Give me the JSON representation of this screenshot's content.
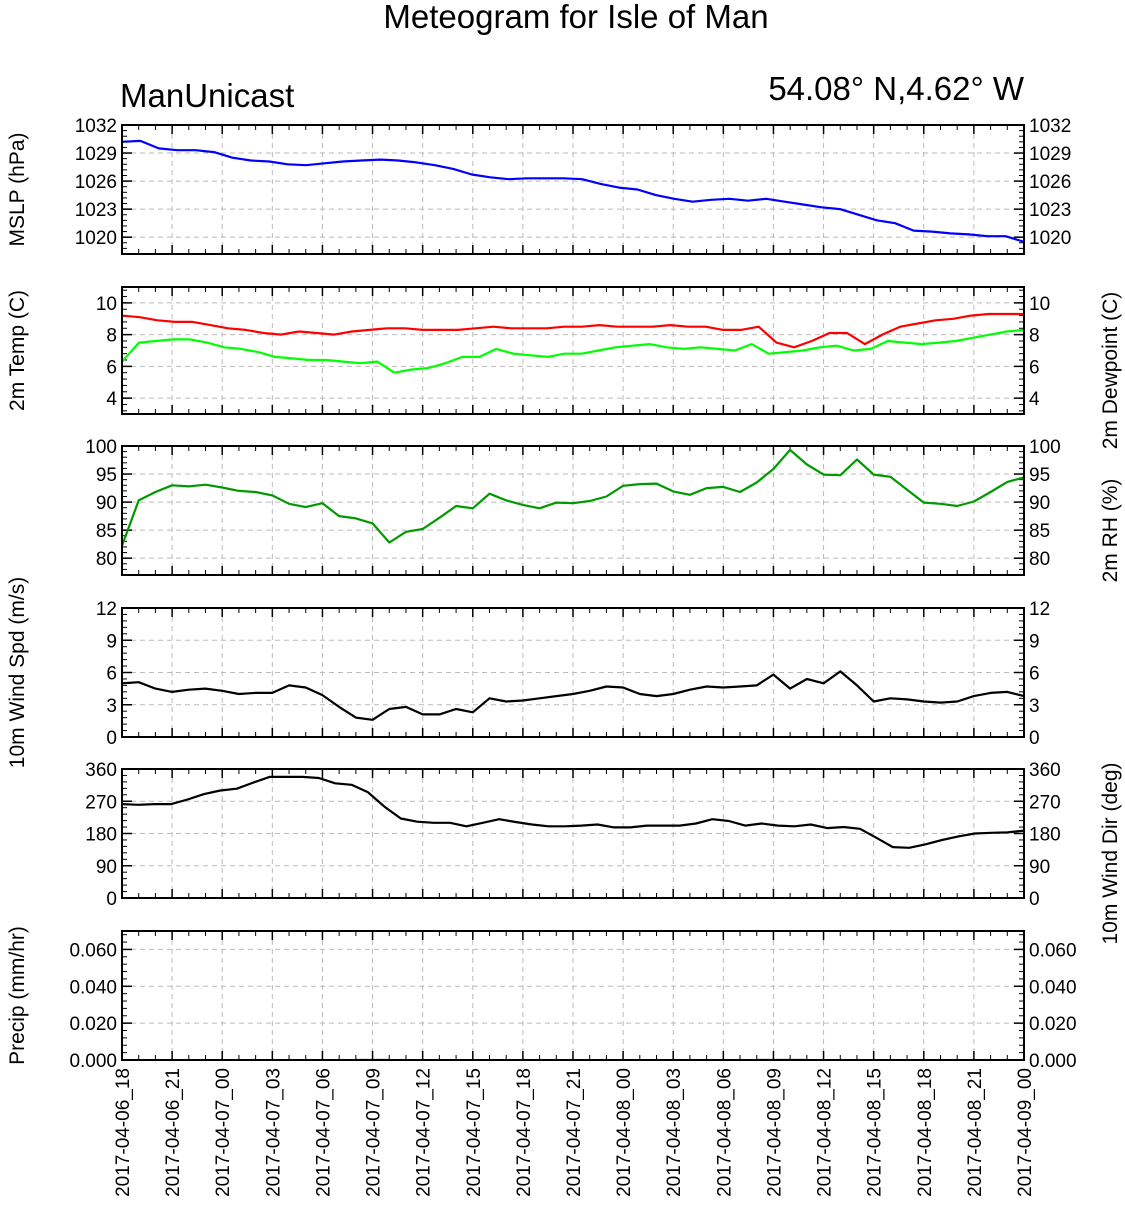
{
  "header": {
    "title": "Meteogram for Isle of Man",
    "model": "ManUnicast",
    "location": "54.08° N,4.62° W"
  },
  "x_tick_labels": [
    "2017-04-06_18",
    "2017-04-06_21",
    "2017-04-07_00",
    "2017-04-07_03",
    "2017-04-07_06",
    "2017-04-07_09",
    "2017-04-07_12",
    "2017-04-07_15",
    "2017-04-07_18",
    "2017-04-07_21",
    "2017-04-08_00",
    "2017-04-08_03",
    "2017-04-08_06",
    "2017-04-08_09",
    "2017-04-08_12",
    "2017-04-08_15",
    "2017-04-08_18",
    "2017-04-08_21",
    "2017-04-09_00"
  ],
  "chart_data": [
    {
      "type": "line",
      "ylabel": "MSLP (hPa)",
      "ylim": [
        1018.2,
        1032
      ],
      "yticks": [
        1020,
        1023,
        1026,
        1029,
        1032
      ],
      "tick_decimals": 0,
      "right_ticks": true,
      "grid": true,
      "series": [
        {
          "color": "#0000ff",
          "values": [
            1030.2,
            1030.3,
            1029.5,
            1029.3,
            1029.3,
            1029.1,
            1028.5,
            1028.2,
            1028.1,
            1027.8,
            1027.7,
            1027.9,
            1028.1,
            1028.2,
            1028.3,
            1028.2,
            1028.0,
            1027.7,
            1027.3,
            1026.7,
            1026.4,
            1026.2,
            1026.3,
            1026.3,
            1026.3,
            1026.2,
            1025.7,
            1025.3,
            1025.1,
            1024.5,
            1024.1,
            1023.8,
            1024.0,
            1024.1,
            1023.9,
            1024.1,
            1023.8,
            1023.5,
            1023.2,
            1023.0,
            1022.4,
            1021.8,
            1021.5,
            1020.7,
            1020.6,
            1020.4,
            1020.3,
            1020.1,
            1020.1,
            1019.5
          ]
        }
      ]
    },
    {
      "type": "line",
      "ylabel": "2m Temp (C)",
      "ylabel_right": "2m Dewpoint (C)",
      "ylim": [
        3,
        11
      ],
      "yticks": [
        4,
        6,
        8,
        10
      ],
      "tick_decimals": 0,
      "right_ticks": true,
      "grid": true,
      "series": [
        {
          "color": "#ff0000",
          "values": [
            9.2,
            9.1,
            8.9,
            8.8,
            8.8,
            8.6,
            8.4,
            8.3,
            8.1,
            8.0,
            8.2,
            8.1,
            8.0,
            8.2,
            8.3,
            8.4,
            8.4,
            8.3,
            8.3,
            8.3,
            8.4,
            8.5,
            8.4,
            8.4,
            8.4,
            8.5,
            8.5,
            8.6,
            8.5,
            8.5,
            8.5,
            8.6,
            8.5,
            8.5,
            8.3,
            8.3,
            8.5,
            7.5,
            7.2,
            7.6,
            8.1,
            8.1,
            7.4,
            8.0,
            8.5,
            8.7,
            8.9,
            9.0,
            9.2,
            9.3,
            9.3,
            9.3
          ]
        },
        {
          "color": "#00ff00",
          "values": [
            6.3,
            7.5,
            7.6,
            7.7,
            7.7,
            7.5,
            7.2,
            7.1,
            6.9,
            6.6,
            6.5,
            6.4,
            6.4,
            6.3,
            6.2,
            6.3,
            5.6,
            5.8,
            5.9,
            6.2,
            6.6,
            6.6,
            7.1,
            6.8,
            6.7,
            6.6,
            6.8,
            6.8,
            7.0,
            7.2,
            7.3,
            7.4,
            7.2,
            7.1,
            7.2,
            7.1,
            7.0,
            7.4,
            6.8,
            6.9,
            7.0,
            7.2,
            7.3,
            7.0,
            7.1,
            7.6,
            7.5,
            7.4,
            7.5,
            7.6,
            7.8,
            8.0,
            8.2,
            8.3
          ]
        }
      ]
    },
    {
      "type": "line",
      "ylabel": "",
      "ylabel_right": "2m RH (%)",
      "ylim": [
        77,
        100
      ],
      "yticks": [
        80,
        85,
        90,
        95,
        100
      ],
      "tick_decimals": 0,
      "right_ticks": true,
      "grid": true,
      "series": [
        {
          "color": "#009900",
          "values": [
            82.2,
            90.3,
            91.8,
            93.0,
            92.8,
            93.1,
            92.6,
            92.0,
            91.8,
            91.2,
            89.7,
            89.1,
            89.8,
            87.5,
            87.1,
            86.2,
            82.8,
            84.7,
            85.2,
            87.2,
            89.3,
            88.9,
            91.5,
            90.3,
            89.5,
            88.9,
            89.9,
            89.8,
            90.2,
            91.0,
            92.9,
            93.2,
            93.3,
            91.9,
            91.3,
            92.5,
            92.7,
            91.8,
            93.5,
            95.9,
            99.3,
            96.7,
            94.9,
            94.8,
            97.6,
            94.9,
            94.5,
            92.2,
            89.9,
            89.7,
            89.3,
            90.1,
            91.8,
            93.6,
            94.4
          ]
        }
      ]
    },
    {
      "type": "line",
      "ylabel": "10m Wind Spd (m/s)",
      "ylim": [
        0,
        12
      ],
      "yticks": [
        0,
        3,
        6,
        9,
        12
      ],
      "tick_decimals": 0,
      "right_ticks": true,
      "grid": true,
      "series": [
        {
          "color": "#000000",
          "values": [
            5.0,
            5.1,
            4.5,
            4.2,
            4.4,
            4.5,
            4.3,
            4.0,
            4.1,
            4.1,
            4.8,
            4.6,
            3.9,
            2.8,
            1.8,
            1.6,
            2.6,
            2.8,
            2.1,
            2.1,
            2.6,
            2.3,
            3.6,
            3.3,
            3.4,
            3.6,
            3.8,
            4.0,
            4.3,
            4.7,
            4.6,
            4.0,
            3.8,
            4.0,
            4.4,
            4.7,
            4.6,
            4.7,
            4.8,
            5.8,
            4.5,
            5.4,
            5.0,
            6.1,
            4.8,
            3.3,
            3.6,
            3.5,
            3.3,
            3.2,
            3.3,
            3.8,
            4.1,
            4.2,
            3.8
          ]
        }
      ]
    },
    {
      "type": "line",
      "ylabel": "",
      "ylabel_right": "10m Wind Dir (deg)",
      "ylim": [
        0,
        360
      ],
      "yticks": [
        0,
        90,
        180,
        270,
        360
      ],
      "tick_decimals": 0,
      "right_ticks": true,
      "grid": true,
      "series": [
        {
          "color": "#000000",
          "values": [
            262,
            260,
            262,
            262,
            275,
            290,
            300,
            305,
            322,
            338,
            338,
            338,
            335,
            320,
            316,
            295,
            255,
            222,
            213,
            210,
            210,
            200,
            210,
            220,
            212,
            205,
            200,
            200,
            202,
            205,
            197,
            197,
            202,
            202,
            202,
            208,
            220,
            215,
            202,
            208,
            202,
            200,
            205,
            195,
            198,
            193,
            168,
            142,
            140,
            150,
            162,
            172,
            180,
            182,
            183,
            188
          ]
        }
      ]
    },
    {
      "type": "bar",
      "ylabel": "Precip (mm/hr)",
      "ylim": [
        0,
        0.07
      ],
      "yticks": [
        0.0,
        0.02,
        0.04,
        0.06
      ],
      "tick_decimals": 3,
      "right_ticks": true,
      "grid": true,
      "series": [
        {
          "color": "#000000",
          "values": [
            0,
            0,
            0,
            0,
            0,
            0,
            0,
            0,
            0,
            0,
            0,
            0,
            0,
            0,
            0.0006,
            0.0006,
            0.0004,
            0,
            0,
            0,
            0,
            0,
            0,
            0,
            0,
            0,
            0,
            0,
            0,
            0,
            0,
            0,
            0,
            0,
            0,
            0,
            0,
            0,
            0.0006,
            0.0006,
            0.0006,
            0.0004,
            0,
            0,
            0,
            0,
            0,
            0,
            0,
            0,
            0,
            0,
            0,
            0
          ]
        }
      ]
    }
  ]
}
